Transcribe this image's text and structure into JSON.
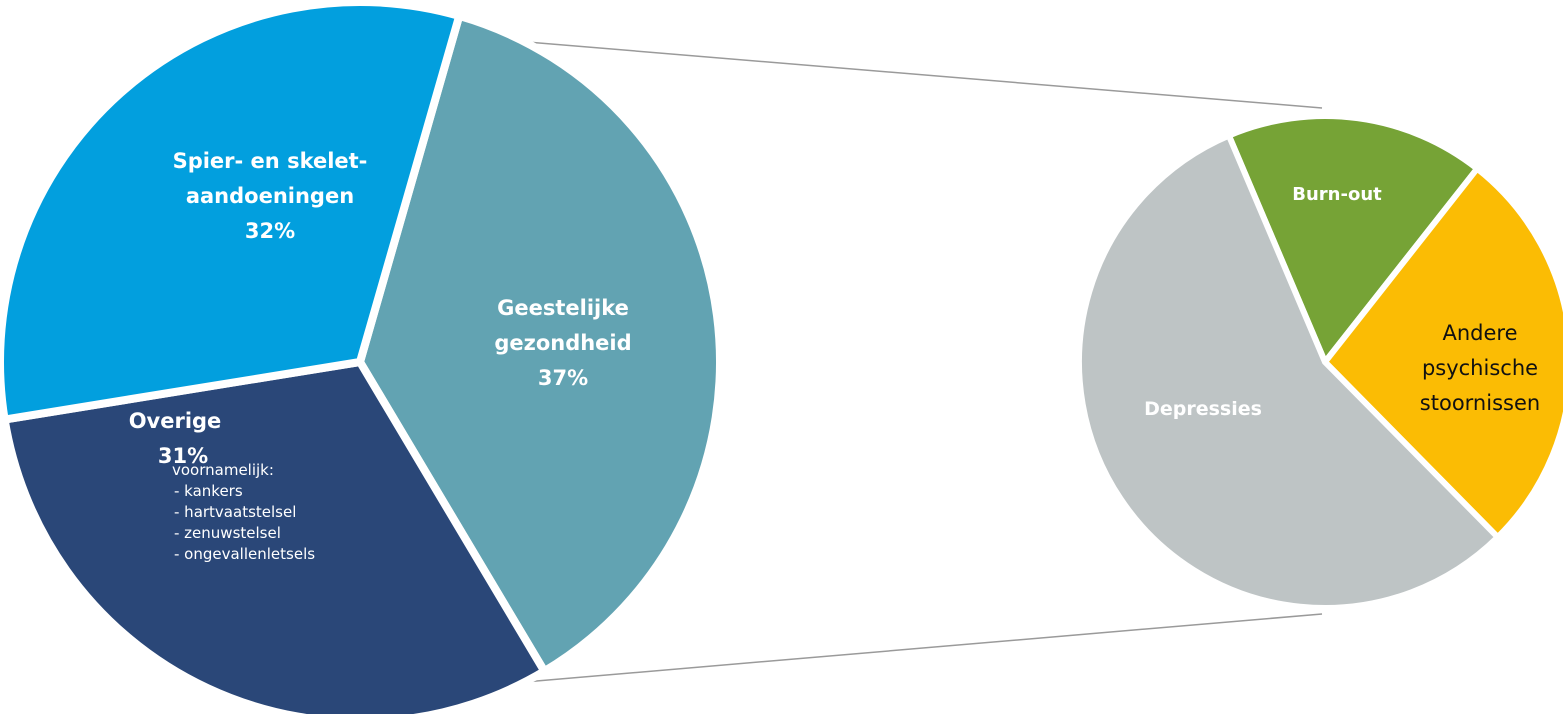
{
  "chart_data": [
    {
      "type": "pie",
      "slices": [
        {
          "key": "geestelijk",
          "label_lines": [
            "Geestelijke",
            "gezondheid"
          ],
          "value_label": "37%",
          "value": 37,
          "color": "#62a3b2"
        },
        {
          "key": "overige",
          "label_lines": [
            "Overige"
          ],
          "value_label": "31%",
          "value": 31,
          "color": "#2a4778",
          "note_lines": [
            "voornamelijk:",
            "- kankers",
            "- hartvaatstelsel",
            "- zenuwstelsel",
            "- ongevallenletsels"
          ]
        },
        {
          "key": "spier",
          "label_lines": [
            "Spier- en skelet-",
            "aandoeningen"
          ],
          "value_label": "32%",
          "value": 32,
          "color": "#029fde"
        }
      ]
    },
    {
      "type": "pie",
      "slices": [
        {
          "key": "burnout",
          "label_lines": [
            "Burn-out"
          ],
          "value": 17,
          "color": "#76a336"
        },
        {
          "key": "andere",
          "label_lines": [
            "Andere",
            "psychische",
            "stoornissen"
          ],
          "value": 27,
          "color": "#fbbc04"
        },
        {
          "key": "depressies",
          "label_lines": [
            "Depressies"
          ],
          "value": 56,
          "color": "#bec4c5"
        }
      ]
    }
  ]
}
